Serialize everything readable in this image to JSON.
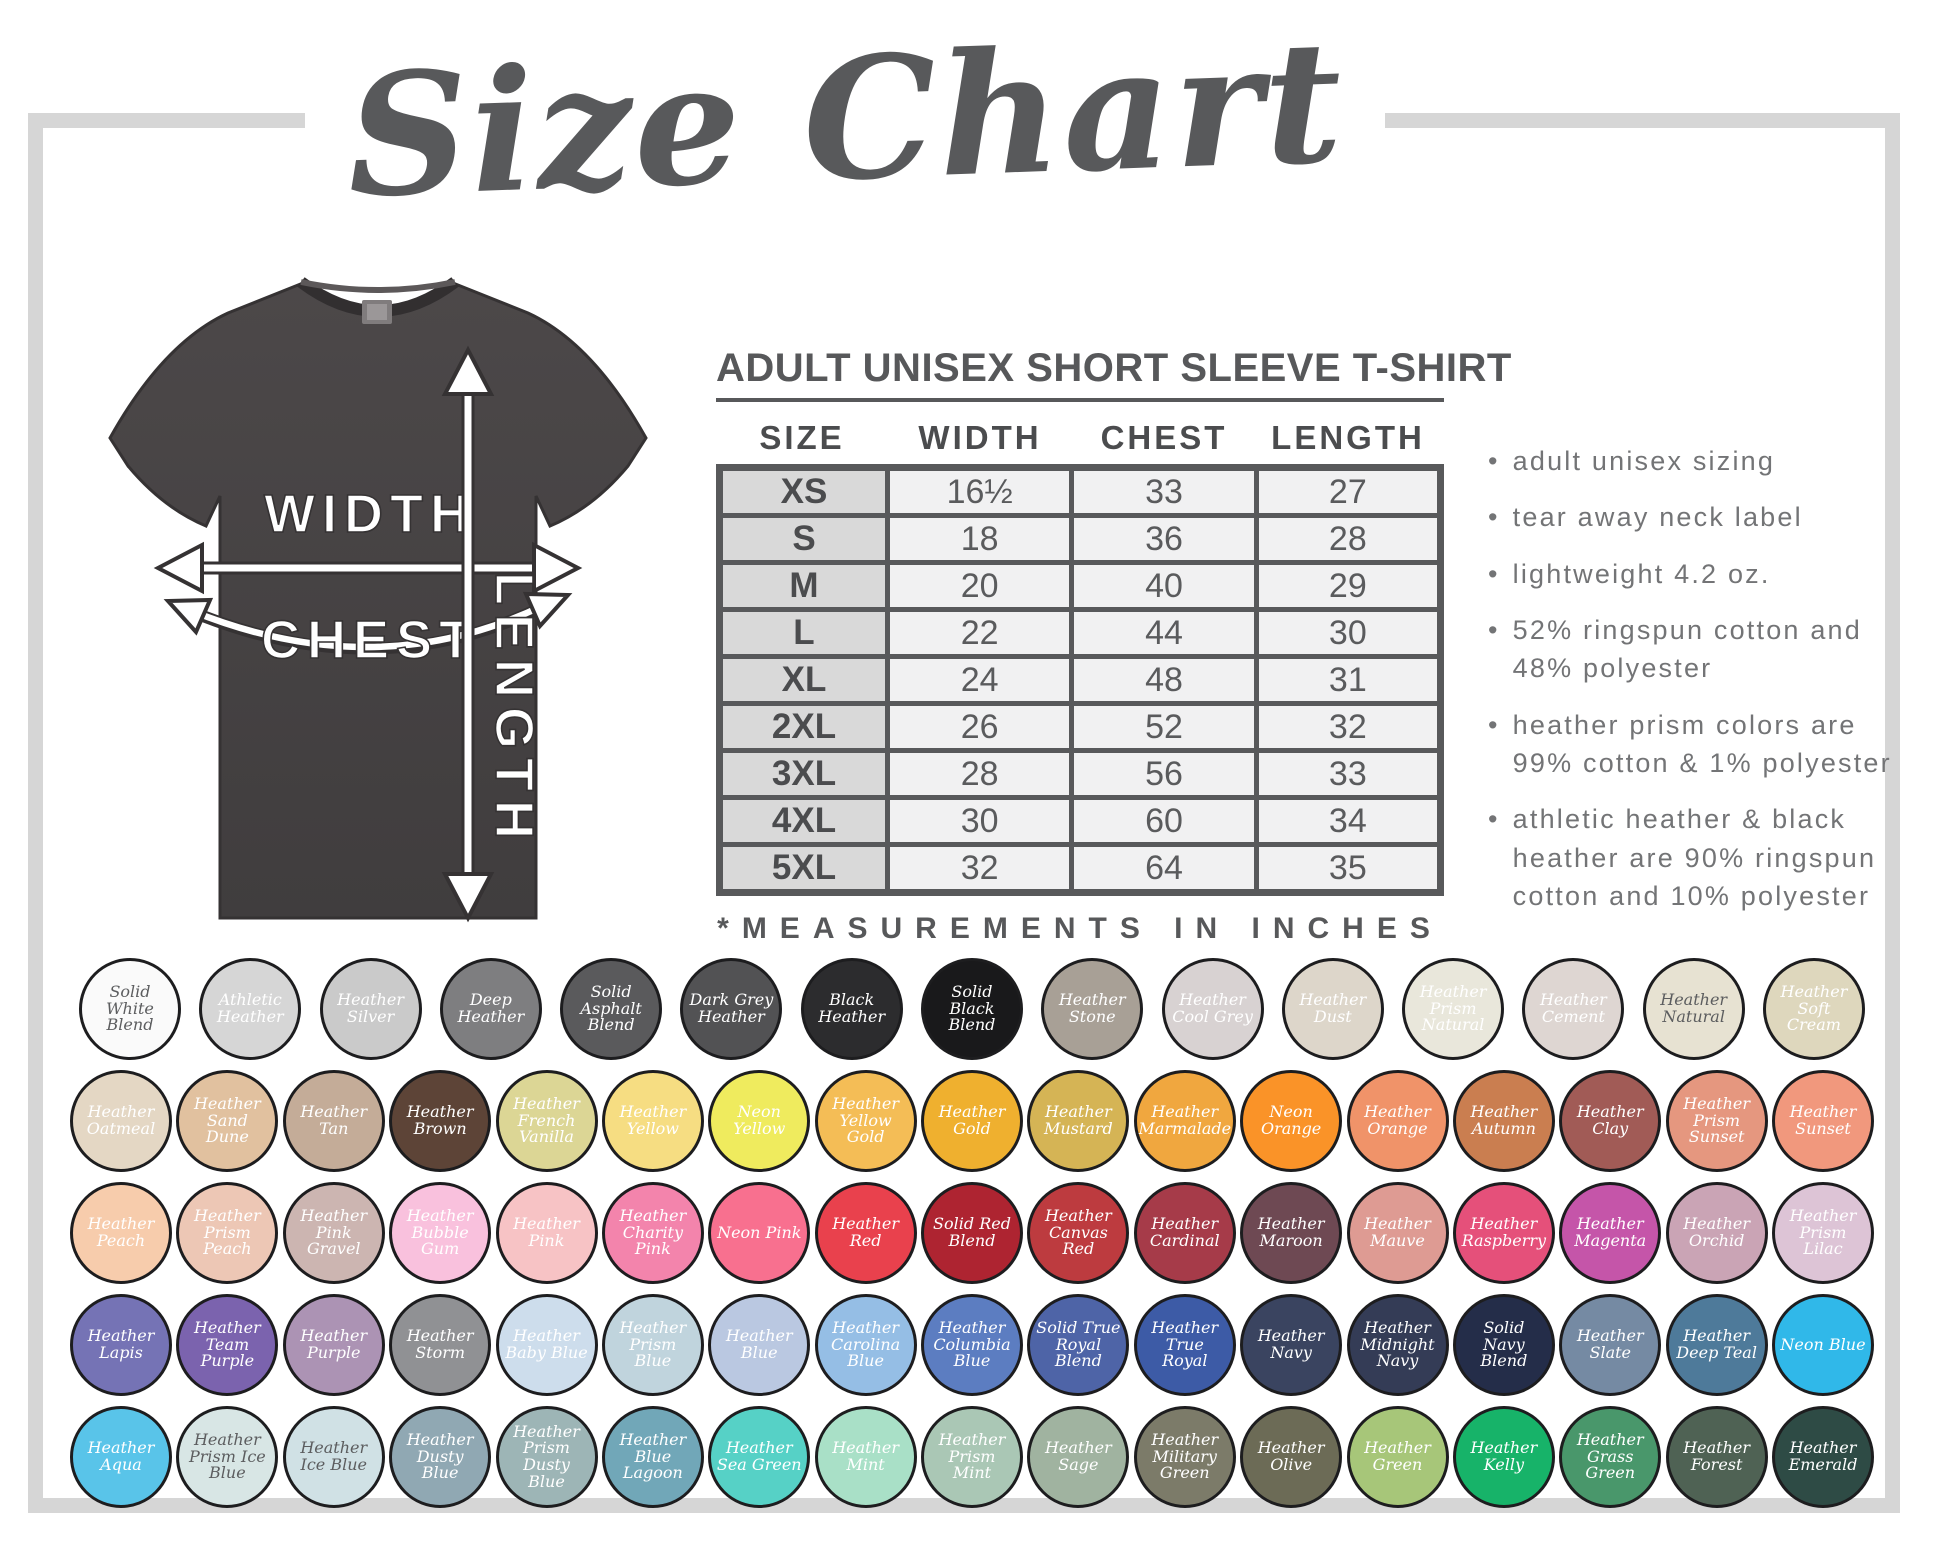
{
  "title": "Size Chart",
  "shirt": {
    "width_label": "WIDTH",
    "chest_label": "CHEST",
    "length_label": "LENGTH",
    "fabric_color": "#474344"
  },
  "table": {
    "heading": "ADULT UNISEX SHORT SLEEVE T-SHIRT",
    "columns": [
      "SIZE",
      "WIDTH",
      "CHEST",
      "LENGTH"
    ],
    "rows": [
      {
        "size": "XS",
        "width": "16½",
        "chest": "33",
        "length": "27"
      },
      {
        "size": "S",
        "width": "18",
        "chest": "36",
        "length": "28"
      },
      {
        "size": "M",
        "width": "20",
        "chest": "40",
        "length": "29"
      },
      {
        "size": "L",
        "width": "22",
        "chest": "44",
        "length": "30"
      },
      {
        "size": "XL",
        "width": "24",
        "chest": "48",
        "length": "31"
      },
      {
        "size": "2XL",
        "width": "26",
        "chest": "52",
        "length": "32"
      },
      {
        "size": "3XL",
        "width": "28",
        "chest": "56",
        "length": "33"
      },
      {
        "size": "4XL",
        "width": "30",
        "chest": "60",
        "length": "34"
      },
      {
        "size": "5XL",
        "width": "32",
        "chest": "64",
        "length": "35"
      }
    ],
    "footnote": "*MEASUREMENTS IN INCHES"
  },
  "bullets": [
    "adult unisex sizing",
    "tear away neck label",
    "lightweight 4.2 oz.",
    "52% ringspun cotton and 48% polyester",
    "heather prism colors are 99% cotton & 1% polyester",
    "athletic heather & black heather are 90% ringspun cotton and 10% polyester"
  ],
  "swatch_rows": [
    [
      {
        "name": "Solid White Blend",
        "color": "#fafafa",
        "dark": true
      },
      {
        "name": "Athletic Heather",
        "color": "#d6d6d6"
      },
      {
        "name": "Heather Silver",
        "color": "#cacaca"
      },
      {
        "name": "Deep Heather",
        "color": "#7e7e80"
      },
      {
        "name": "Solid Asphalt Blend",
        "color": "#5a5a5c"
      },
      {
        "name": "Dark Grey Heather",
        "color": "#525254"
      },
      {
        "name": "Black Heather",
        "color": "#2c2c2e"
      },
      {
        "name": "Solid Black Blend",
        "color": "#19191b"
      },
      {
        "name": "Heather Stone",
        "color": "#a8a096"
      },
      {
        "name": "Heather Cool Grey",
        "color": "#d8d2d2"
      },
      {
        "name": "Heather Dust",
        "color": "#ddd6ca"
      },
      {
        "name": "Heather Prism Natural",
        "color": "#e9e7db"
      },
      {
        "name": "Heather Cement",
        "color": "#ded6d2"
      },
      {
        "name": "Heather Natural",
        "color": "#e7e2d2",
        "dark": true
      },
      {
        "name": "Heather Soft Cream",
        "color": "#ded7bd"
      }
    ],
    [
      {
        "name": "Heather Oatmeal",
        "color": "#e4d7c4"
      },
      {
        "name": "Heather Sand Dune",
        "color": "#e1c19f"
      },
      {
        "name": "Heather Tan",
        "color": "#c4ac98"
      },
      {
        "name": "Heather Brown",
        "color": "#5d4437"
      },
      {
        "name": "Heather French Vanilla",
        "color": "#dcd695"
      },
      {
        "name": "Heather Yellow",
        "color": "#f6dd82"
      },
      {
        "name": "Neon Yellow",
        "color": "#efeb5e"
      },
      {
        "name": "Heather Yellow Gold",
        "color": "#f4bd56"
      },
      {
        "name": "Heather Gold",
        "color": "#efb02f"
      },
      {
        "name": "Heather Mustard",
        "color": "#d5b455"
      },
      {
        "name": "Heather Marmalade",
        "color": "#f0a73f"
      },
      {
        "name": "Neon Orange",
        "color": "#fa9328"
      },
      {
        "name": "Heather Orange",
        "color": "#f09369"
      },
      {
        "name": "Heather Autumn",
        "color": "#ca7e50"
      },
      {
        "name": "Heather Clay",
        "color": "#a15b56"
      },
      {
        "name": "Heather Prism Sunset",
        "color": "#e5977f"
      },
      {
        "name": "Heather Sunset",
        "color": "#f1987d"
      }
    ],
    [
      {
        "name": "Heather Peach",
        "color": "#f7ccac"
      },
      {
        "name": "Heather Prism Peach",
        "color": "#edc7b5"
      },
      {
        "name": "Heather Pink Gravel",
        "color": "#ccb5b1"
      },
      {
        "name": "Heather Bubble Gum",
        "color": "#f9c1dd"
      },
      {
        "name": "Heather Pink",
        "color": "#f7c3c5"
      },
      {
        "name": "Heather Charity Pink",
        "color": "#f384ac"
      },
      {
        "name": "Neon Pink",
        "color": "#f8708f"
      },
      {
        "name": "Heather Red",
        "color": "#e9414d"
      },
      {
        "name": "Solid Red Blend",
        "color": "#ae2431"
      },
      {
        "name": "Heather Canvas Red",
        "color": "#bd3b3f"
      },
      {
        "name": "Heather Cardinal",
        "color": "#a63b49"
      },
      {
        "name": "Heather Maroon",
        "color": "#6e4953"
      },
      {
        "name": "Heather Mauve",
        "color": "#de9b93"
      },
      {
        "name": "Heather Raspberry",
        "color": "#e5507a"
      },
      {
        "name": "Heather Magenta",
        "color": "#c555a9"
      },
      {
        "name": "Heather Orchid",
        "color": "#caa4b5"
      },
      {
        "name": "Heather Prism Lilac",
        "color": "#ddc4d6"
      }
    ],
    [
      {
        "name": "Heather Lapis",
        "color": "#7573b5"
      },
      {
        "name": "Heather Team Purple",
        "color": "#7b63ae"
      },
      {
        "name": "Heather Purple",
        "color": "#ac93b4"
      },
      {
        "name": "Heather Storm",
        "color": "#909194"
      },
      {
        "name": "Heather Baby Blue",
        "color": "#cdddec"
      },
      {
        "name": "Heather Prism Blue",
        "color": "#c0d4dd"
      },
      {
        "name": "Heather Blue",
        "color": "#bac8e1"
      },
      {
        "name": "Heather Carolina Blue",
        "color": "#95bee5"
      },
      {
        "name": "Heather Columbia Blue",
        "color": "#5c7dc1"
      },
      {
        "name": "Solid True Royal Blend",
        "color": "#4e64a7"
      },
      {
        "name": "Heather True Royal",
        "color": "#3d5ba6"
      },
      {
        "name": "Heather Navy",
        "color": "#3a4460"
      },
      {
        "name": "Heather Midnight Navy",
        "color": "#343c56"
      },
      {
        "name": "Solid Navy Blend",
        "color": "#242d49"
      },
      {
        "name": "Heather Slate",
        "color": "#758aa3"
      },
      {
        "name": "Heather Deep Teal",
        "color": "#4e7a9a"
      },
      {
        "name": "Neon Blue",
        "color": "#30b8e9"
      }
    ],
    [
      {
        "name": "Heather Aqua",
        "color": "#59c4e9"
      },
      {
        "name": "Heather Prism Ice Blue",
        "color": "#d8e6e5",
        "dark": true
      },
      {
        "name": "Heather Ice Blue",
        "color": "#d0e1e5",
        "dark": true
      },
      {
        "name": "Heather Dusty Blue",
        "color": "#90a8b3"
      },
      {
        "name": "Heather Prism Dusty Blue",
        "color": "#9db5b6"
      },
      {
        "name": "Heather Blue Lagoon",
        "color": "#71a7b8"
      },
      {
        "name": "Heather Sea Green",
        "color": "#56d1c6"
      },
      {
        "name": "Heather Mint",
        "color": "#a9e0c7"
      },
      {
        "name": "Heather Prism Mint",
        "color": "#aac7b5"
      },
      {
        "name": "Heather Sage",
        "color": "#a0b3a0"
      },
      {
        "name": "Heather Military Green",
        "color": "#7c7b69"
      },
      {
        "name": "Heather Olive",
        "color": "#6c6b56"
      },
      {
        "name": "Heather Green",
        "color": "#a7c679"
      },
      {
        "name": "Heather Kelly",
        "color": "#17b369"
      },
      {
        "name": "Heather Grass Green",
        "color": "#49976b"
      },
      {
        "name": "Heather Forest",
        "color": "#4f6254"
      },
      {
        "name": "Heather Emerald",
        "color": "#2e4b45"
      }
    ]
  ]
}
